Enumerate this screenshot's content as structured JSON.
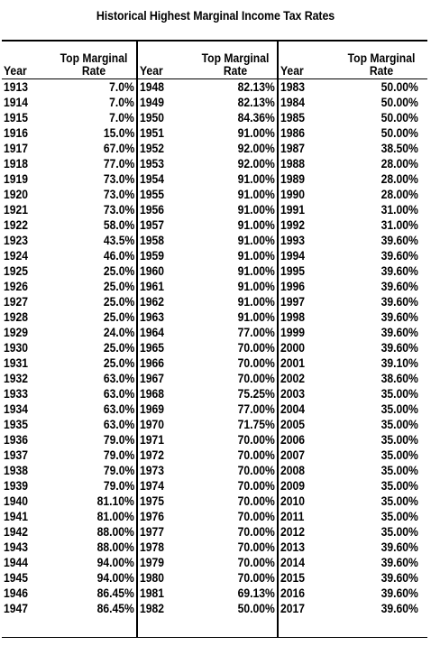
{
  "title": "Historical Highest Marginal Income Tax Rates",
  "headers": {
    "year": "Year",
    "rate_line1": "Top Marginal",
    "rate_line2": "Rate"
  },
  "columns": [
    [
      [
        "1913",
        "7.0%"
      ],
      [
        "1914",
        "7.0%"
      ],
      [
        "1915",
        "7.0%"
      ],
      [
        "1916",
        "15.0%"
      ],
      [
        "1917",
        "67.0%"
      ],
      [
        "1918",
        "77.0%"
      ],
      [
        "1919",
        "73.0%"
      ],
      [
        "1920",
        "73.0%"
      ],
      [
        "1921",
        "73.0%"
      ],
      [
        "1922",
        "58.0%"
      ],
      [
        "1923",
        "43.5%"
      ],
      [
        "1924",
        "46.0%"
      ],
      [
        "1925",
        "25.0%"
      ],
      [
        "1926",
        "25.0%"
      ],
      [
        "1927",
        "25.0%"
      ],
      [
        "1928",
        "25.0%"
      ],
      [
        "1929",
        "24.0%"
      ],
      [
        "1930",
        "25.0%"
      ],
      [
        "1931",
        "25.0%"
      ],
      [
        "1932",
        "63.0%"
      ],
      [
        "1933",
        "63.0%"
      ],
      [
        "1934",
        "63.0%"
      ],
      [
        "1935",
        "63.0%"
      ],
      [
        "1936",
        "79.0%"
      ],
      [
        "1937",
        "79.0%"
      ],
      [
        "1938",
        "79.0%"
      ],
      [
        "1939",
        "79.0%"
      ],
      [
        "1940",
        "81.10%"
      ],
      [
        "1941",
        "81.00%"
      ],
      [
        "1942",
        "88.00%"
      ],
      [
        "1943",
        "88.00%"
      ],
      [
        "1944",
        "94.00%"
      ],
      [
        "1945",
        "94.00%"
      ],
      [
        "1946",
        "86.45%"
      ],
      [
        "1947",
        "86.45%"
      ]
    ],
    [
      [
        "1948",
        "82.13%"
      ],
      [
        "1949",
        "82.13%"
      ],
      [
        "1950",
        "84.36%"
      ],
      [
        "1951",
        "91.00%"
      ],
      [
        "1952",
        "92.00%"
      ],
      [
        "1953",
        "92.00%"
      ],
      [
        "1954",
        "91.00%"
      ],
      [
        "1955",
        "91.00%"
      ],
      [
        "1956",
        "91.00%"
      ],
      [
        "1957",
        "91.00%"
      ],
      [
        "1958",
        "91.00%"
      ],
      [
        "1959",
        "91.00%"
      ],
      [
        "1960",
        "91.00%"
      ],
      [
        "1961",
        "91.00%"
      ],
      [
        "1962",
        "91.00%"
      ],
      [
        "1963",
        "91.00%"
      ],
      [
        "1964",
        "77.00%"
      ],
      [
        "1965",
        "70.00%"
      ],
      [
        "1966",
        "70.00%"
      ],
      [
        "1967",
        "70.00%"
      ],
      [
        "1968",
        "75.25%"
      ],
      [
        "1969",
        "77.00%"
      ],
      [
        "1970",
        "71.75%"
      ],
      [
        "1971",
        "70.00%"
      ],
      [
        "1972",
        "70.00%"
      ],
      [
        "1973",
        "70.00%"
      ],
      [
        "1974",
        "70.00%"
      ],
      [
        "1975",
        "70.00%"
      ],
      [
        "1976",
        "70.00%"
      ],
      [
        "1977",
        "70.00%"
      ],
      [
        "1978",
        "70.00%"
      ],
      [
        "1979",
        "70.00%"
      ],
      [
        "1980",
        "70.00%"
      ],
      [
        "1981",
        "69.13%"
      ],
      [
        "1982",
        "50.00%"
      ]
    ],
    [
      [
        "1983",
        "50.00%"
      ],
      [
        "1984",
        "50.00%"
      ],
      [
        "1985",
        "50.00%"
      ],
      [
        "1986",
        "50.00%"
      ],
      [
        "1987",
        "38.50%"
      ],
      [
        "1988",
        "28.00%"
      ],
      [
        "1989",
        "28.00%"
      ],
      [
        "1990",
        "28.00%"
      ],
      [
        "1991",
        "31.00%"
      ],
      [
        "1992",
        "31.00%"
      ],
      [
        "1993",
        "39.60%"
      ],
      [
        "1994",
        "39.60%"
      ],
      [
        "1995",
        "39.60%"
      ],
      [
        "1996",
        "39.60%"
      ],
      [
        "1997",
        "39.60%"
      ],
      [
        "1998",
        "39.60%"
      ],
      [
        "1999",
        "39.60%"
      ],
      [
        "2000",
        "39.60%"
      ],
      [
        "2001",
        "39.10%"
      ],
      [
        "2002",
        "38.60%"
      ],
      [
        "2003",
        "35.00%"
      ],
      [
        "2004",
        "35.00%"
      ],
      [
        "2005",
        "35.00%"
      ],
      [
        "2006",
        "35.00%"
      ],
      [
        "2007",
        "35.00%"
      ],
      [
        "2008",
        "35.00%"
      ],
      [
        "2009",
        "35.00%"
      ],
      [
        "2010",
        "35.00%"
      ],
      [
        "2011",
        "35.00%"
      ],
      [
        "2012",
        "35.00%"
      ],
      [
        "2013",
        "39.60%"
      ],
      [
        "2014",
        "39.60%"
      ],
      [
        "2015",
        "39.60%"
      ],
      [
        "2016",
        "39.60%"
      ],
      [
        "2017",
        "39.60%"
      ]
    ]
  ]
}
